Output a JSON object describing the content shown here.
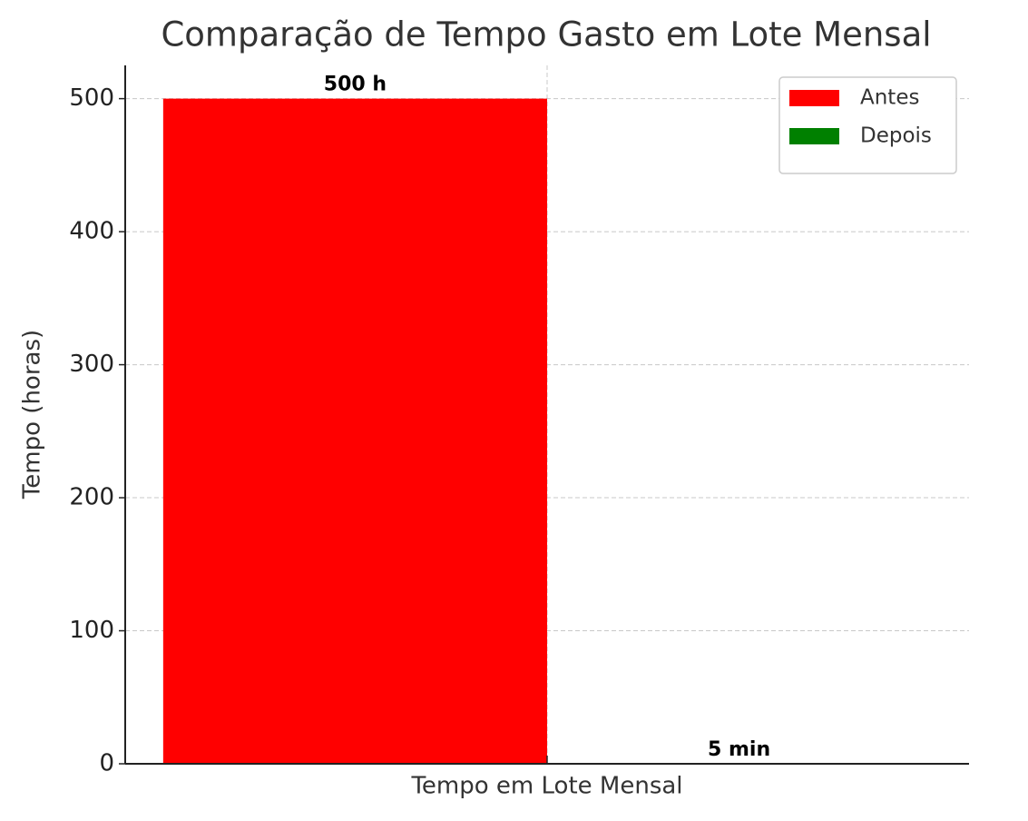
{
  "chart_data": {
    "type": "bar",
    "title": "Comparação de Tempo Gasto em Lote Mensal",
    "xlabel": "Tempo em Lote Mensal",
    "ylabel": "Tempo (horas)",
    "categories": [
      null
    ],
    "series": [
      {
        "name": "Antes",
        "color": "#ff0000",
        "values": [
          500
        ],
        "value_labels": [
          "500 h"
        ]
      },
      {
        "name": "Depois",
        "color": "#008000",
        "values": [
          0.0833
        ],
        "value_labels": [
          "5 min"
        ]
      }
    ],
    "ylim": [
      0,
      525
    ],
    "yticks": [
      0,
      100,
      200,
      300,
      400,
      500
    ],
    "grid": true,
    "legend": "upper right"
  }
}
